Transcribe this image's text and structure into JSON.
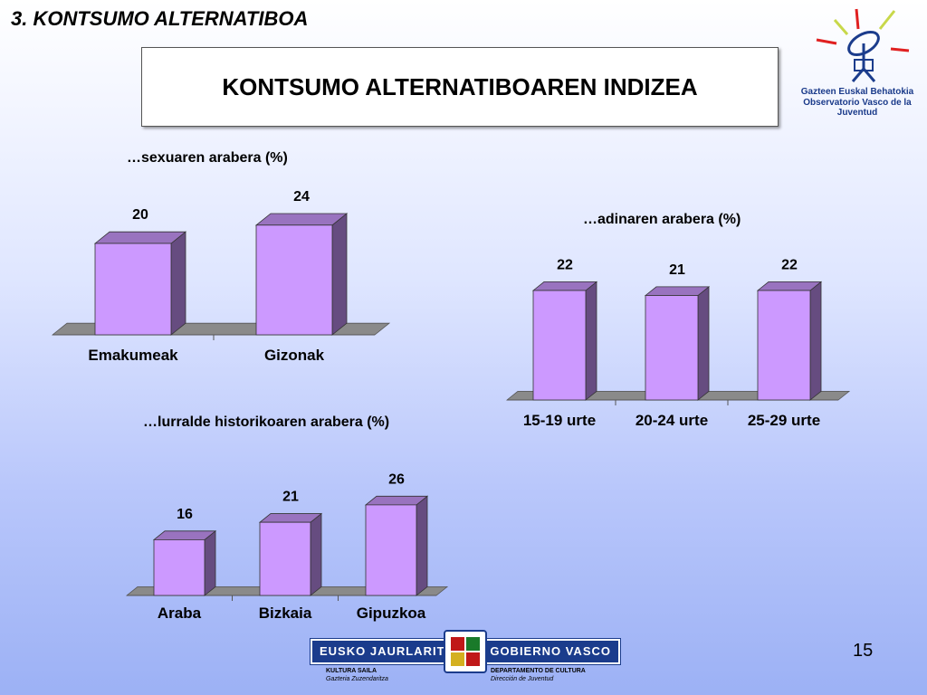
{
  "section_title": "3. KONTSUMO ALTERNATIBOA",
  "main_title": "KONTSUMO ALTERNATIBOAREN INDIZEA",
  "logo": {
    "line1": "Gazteen Euskal Behatokia",
    "line2": "Observatorio Vasco de la Juventud"
  },
  "chart_data": [
    {
      "type": "bar",
      "title": "…sexuaren arabera (%)",
      "categories": [
        "Emakumeak",
        "Gizonak"
      ],
      "values": [
        20,
        24
      ],
      "ylim": [
        0,
        30
      ],
      "grid": false,
      "legend": "none"
    },
    {
      "type": "bar",
      "title": "…adinaren arabera (%)",
      "categories": [
        "15-19 urte",
        "20-24 urte",
        "25-29 urte"
      ],
      "values": [
        22,
        21,
        22
      ],
      "ylim": [
        0,
        30
      ],
      "grid": false,
      "legend": "none"
    },
    {
      "type": "bar",
      "title": "…lurralde historikoaren arabera (%)",
      "categories": [
        "Araba",
        "Bizkaia",
        "Gipuzkoa"
      ],
      "values": [
        16,
        21,
        26
      ],
      "ylim": [
        0,
        30
      ],
      "grid": false,
      "legend": "none"
    }
  ],
  "colors": {
    "bar_front": "#cc99ff",
    "bar_side": "#664c80",
    "bar_top": "#9973bf",
    "floor": "#8a8a8a"
  },
  "footer": {
    "left_label": "EUSKO JAURLARITZA",
    "right_label": "GOBIERNO VASCO",
    "left_dept": "KULTURA SAILA",
    "left_sub": "Gazteria Zuzendaritza",
    "right_dept": "DEPARTAMENTO DE CULTURA",
    "right_sub": "Dirección de Juventud"
  },
  "page_number": "15"
}
